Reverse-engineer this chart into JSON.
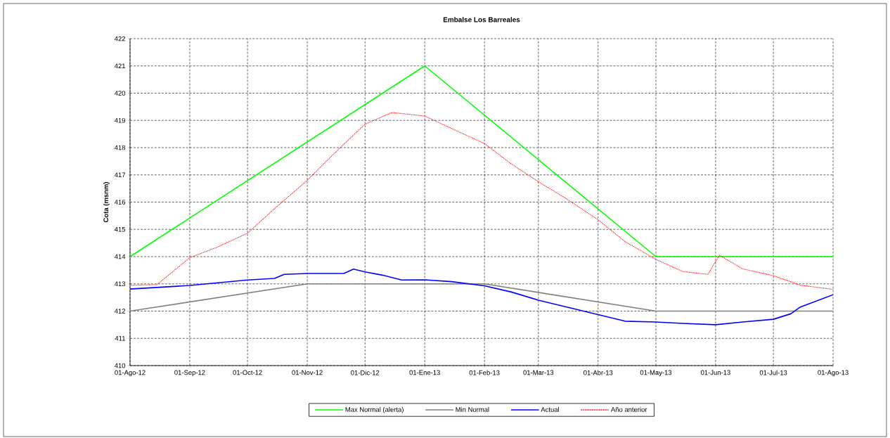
{
  "chart_data": {
    "type": "line",
    "title": "Embalse Los Barreales",
    "ylabel": "Cota (msnm)",
    "xlim": [
      "2012-08-01",
      "2013-08-01"
    ],
    "xticks": [
      {
        "value": "2012-08-01",
        "label": "01-Ago-12"
      },
      {
        "value": "2012-09-01",
        "label": "01-Sep-12"
      },
      {
        "value": "2012-10-01",
        "label": "01-Oct-12"
      },
      {
        "value": "2012-11-01",
        "label": "01-Nov-12"
      },
      {
        "value": "2012-12-01",
        "label": "01-Dic-12"
      },
      {
        "value": "2013-01-01",
        "label": "01-Ene-13"
      },
      {
        "value": "2013-02-01",
        "label": "01-Feb-13"
      },
      {
        "value": "2013-03-01",
        "label": "01-Mar-13"
      },
      {
        "value": "2013-04-01",
        "label": "01-Abr-13"
      },
      {
        "value": "2013-05-01",
        "label": "01-May-13"
      },
      {
        "value": "2013-06-01",
        "label": "01-Jun-13"
      },
      {
        "value": "2013-07-01",
        "label": "01-Jul-13"
      },
      {
        "value": "2013-08-01",
        "label": "01-Ago-13"
      }
    ],
    "ylim": [
      410,
      422
    ],
    "yticks": [
      410,
      411,
      412,
      413,
      414,
      415,
      416,
      417,
      418,
      419,
      420,
      421,
      422
    ],
    "grid": true,
    "legend": "bottom",
    "marker": "none",
    "series": [
      {
        "name": "Max Normal (alerta)",
        "color": "#00ff00",
        "line_style": "solid",
        "x": [
          "2012-08-01",
          "2013-01-01",
          "2013-05-01",
          "2013-08-01"
        ],
        "values": [
          414,
          421,
          414,
          414
        ]
      },
      {
        "name": "Min Normal",
        "color": "#808080",
        "line_style": "solid",
        "x": [
          "2012-08-01",
          "2012-11-01",
          "2013-02-01",
          "2013-05-01",
          "2013-08-01"
        ],
        "values": [
          412,
          413,
          413,
          412,
          412
        ]
      },
      {
        "name": "Actual",
        "color": "#0000ff",
        "line_style": "solid",
        "x": [
          "2012-08-01",
          "2012-09-01",
          "2012-10-01",
          "2012-10-15",
          "2012-10-20",
          "2012-11-01",
          "2012-11-20",
          "2012-11-25",
          "2012-12-01",
          "2012-12-10",
          "2012-12-20",
          "2013-01-01",
          "2013-01-15",
          "2013-02-01",
          "2013-02-15",
          "2013-03-01",
          "2013-03-15",
          "2013-04-01",
          "2013-04-15",
          "2013-05-01",
          "2013-05-15",
          "2013-06-01",
          "2013-06-15",
          "2013-07-01",
          "2013-07-10",
          "2013-07-15",
          "2013-08-01"
        ],
        "values": [
          412.81,
          412.94,
          413.14,
          413.2,
          413.35,
          413.38,
          413.38,
          413.54,
          413.44,
          413.32,
          413.14,
          413.15,
          413.08,
          412.93,
          412.7,
          412.4,
          412.16,
          411.87,
          411.63,
          411.6,
          411.55,
          411.5,
          411.6,
          411.7,
          411.9,
          412.15,
          412.6
        ]
      },
      {
        "name": "Año anterior",
        "color": "#ff0000",
        "line_style": "dotted",
        "x": [
          "2012-08-01",
          "2012-08-15",
          "2012-09-01",
          "2012-09-15",
          "2012-10-01",
          "2012-10-15",
          "2012-11-01",
          "2012-11-15",
          "2012-12-01",
          "2012-12-15",
          "2013-01-01",
          "2013-01-15",
          "2013-02-01",
          "2013-02-15",
          "2013-03-01",
          "2013-03-15",
          "2013-04-01",
          "2013-04-15",
          "2013-05-01",
          "2013-05-15",
          "2013-05-28",
          "2013-06-03",
          "2013-06-15",
          "2013-07-01",
          "2013-07-15",
          "2013-08-01"
        ],
        "values": [
          412.95,
          412.97,
          413.96,
          414.34,
          414.86,
          415.76,
          416.8,
          417.79,
          418.86,
          419.29,
          419.16,
          418.7,
          418.15,
          417.4,
          416.75,
          416.15,
          415.35,
          414.55,
          413.9,
          413.45,
          413.35,
          414.05,
          413.55,
          413.3,
          412.95,
          412.8
        ]
      }
    ]
  }
}
